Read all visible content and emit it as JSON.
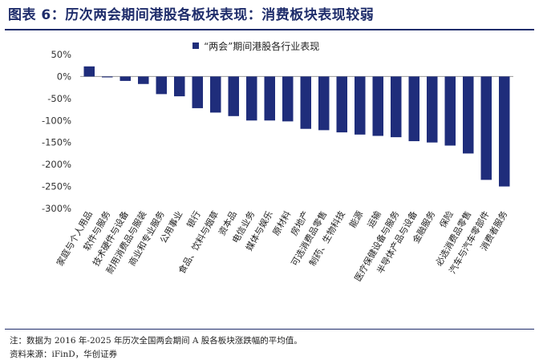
{
  "header": {
    "title": "图表 6：历次两会期间港股各板块表现：消费板块表现较弱"
  },
  "footer": {
    "note": "注：数据为 2016 年-2025 年历次全国两会期间 A 股各板块涨跌幅的平均值。",
    "source": "资料来源：iFinD，华创证券"
  },
  "chart_data": {
    "type": "bar",
    "title": "",
    "legend": "“两会”期间港股各行业表现",
    "legend_position": "top-center",
    "xlabel": "",
    "ylabel": "",
    "ylim": [
      -300,
      50
    ],
    "yticks": [
      50,
      0,
      -50,
      -100,
      -150,
      -200,
      -250,
      -300
    ],
    "ytick_labels": [
      "50%",
      "0%",
      "-50%",
      "-100%",
      "-150%",
      "-200%",
      "-250%",
      "-300%"
    ],
    "grid": false,
    "color": "#1f2d7b",
    "categories": [
      "家庭与个人用品",
      "软件与服务",
      "技术硬件与设备",
      "耐用消费品与服装",
      "商业和专业服务",
      "公用事业",
      "银行",
      "食品、饮料与烟草",
      "资本品",
      "电信业务",
      "媒体与娱乐",
      "原材料",
      "房地产",
      "可选消费品零售",
      "制药、生物科技",
      "能源",
      "运输",
      "医疗保健设备与服务",
      "半导体产品与设备",
      "金融服务",
      "保险",
      "必选消费品零售",
      "汽车与汽车零部件",
      "消费者服务"
    ],
    "values": [
      23,
      -2,
      -10,
      -17,
      -40,
      -45,
      -72,
      -82,
      -90,
      -100,
      -100,
      -102,
      -119,
      -122,
      -127,
      -132,
      -135,
      -138,
      -147,
      -150,
      -157,
      -175,
      -235,
      -250
    ]
  }
}
